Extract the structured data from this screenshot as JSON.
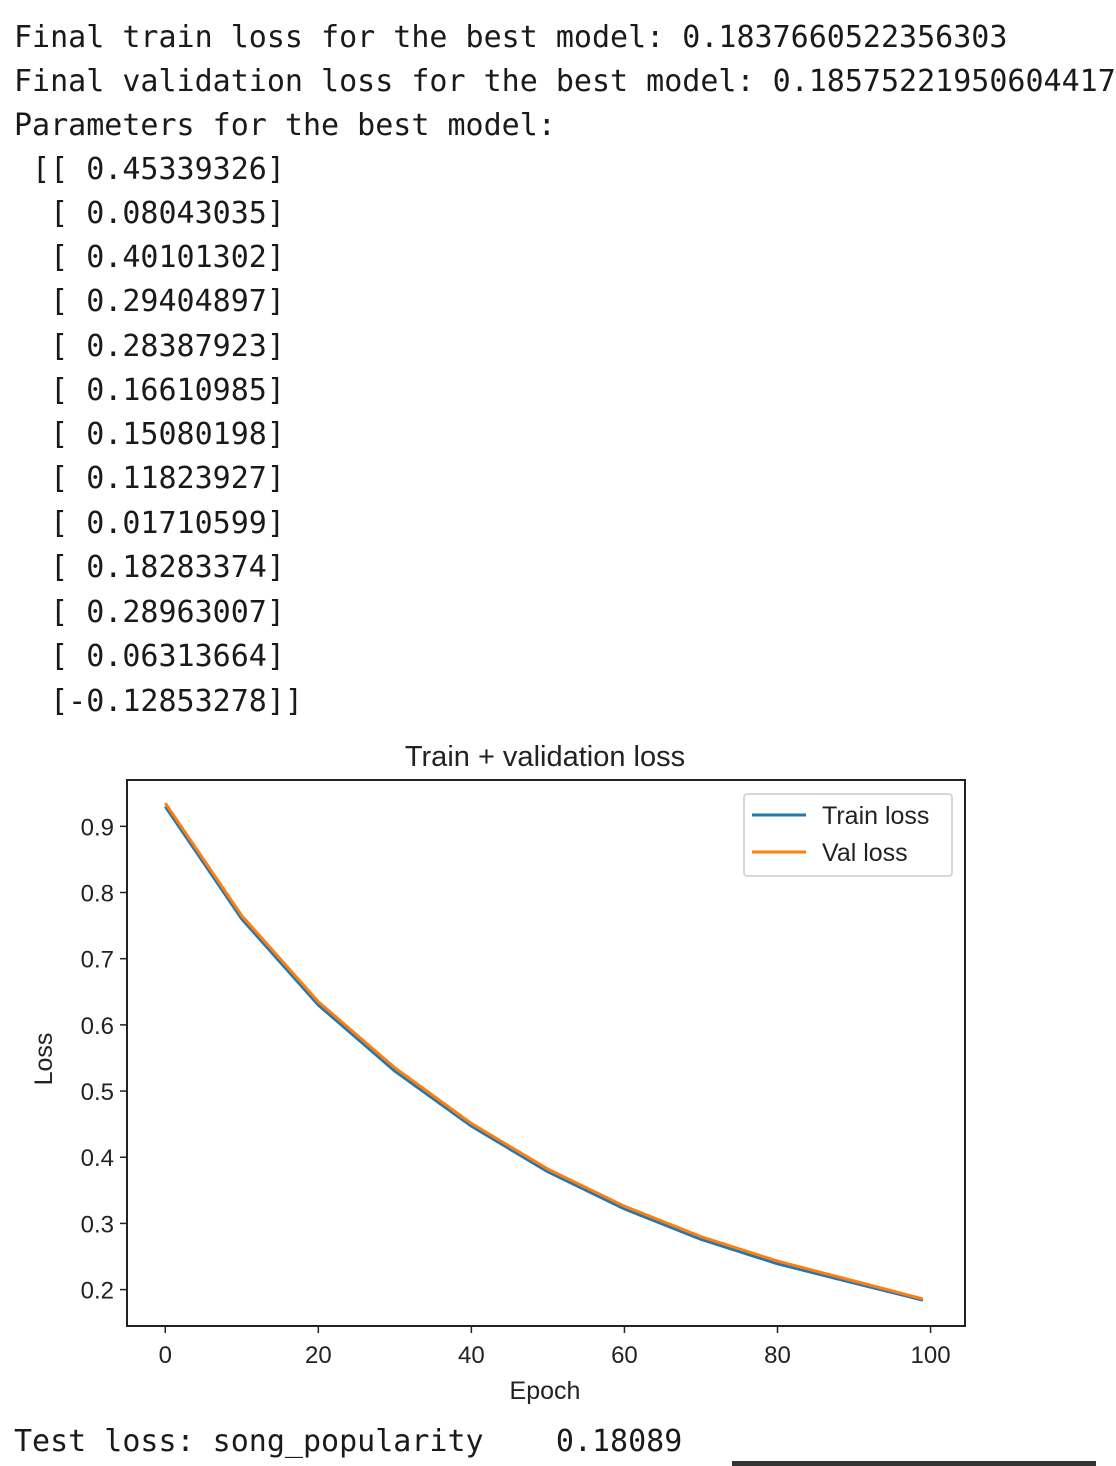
{
  "output": {
    "train_loss_line": "Final train loss for the best model: 0.1837660522356303",
    "val_loss_line": "Final validation loss for the best model: 0.18575221950604417",
    "params_header": "Parameters for the best model:",
    "params": [
      " [[ 0.45339326]",
      "  [ 0.08043035]",
      "  [ 0.40101302]",
      "  [ 0.29404897]",
      "  [ 0.28387923]",
      "  [ 0.16610985]",
      "  [ 0.15080198]",
      "  [ 0.11823927]",
      "  [ 0.01710599]",
      "  [ 0.18283374]",
      "  [ 0.28963007]",
      "  [ 0.06313664]",
      "  [-0.12853278]]"
    ],
    "test_loss_line": "Test loss: song_popularity    0.18089"
  },
  "chart_data": {
    "type": "line",
    "title": "Train + validation loss",
    "xlabel": "Epoch",
    "ylabel": "Loss",
    "xlim": [
      -5.0,
      104.5
    ],
    "ylim": [
      0.145,
      0.97
    ],
    "xticks": [
      0,
      20,
      40,
      60,
      80,
      100
    ],
    "yticks": [
      0.2,
      0.3,
      0.4,
      0.5,
      0.6,
      0.7,
      0.8,
      0.9
    ],
    "grid": false,
    "legend": "top-right",
    "x": [
      0,
      10,
      20,
      30,
      40,
      50,
      60,
      70,
      80,
      90,
      99
    ],
    "series": [
      {
        "name": "Train loss",
        "color": "#1f77b4",
        "values": [
          0.93,
          0.76,
          0.63,
          0.53,
          0.447,
          0.378,
          0.322,
          0.276,
          0.239,
          0.21,
          0.184
        ]
      },
      {
        "name": "Val loss",
        "color": "#ff7f0e",
        "values": [
          0.935,
          0.765,
          0.635,
          0.535,
          0.451,
          0.382,
          0.326,
          0.28,
          0.243,
          0.213,
          0.186
        ]
      }
    ]
  }
}
